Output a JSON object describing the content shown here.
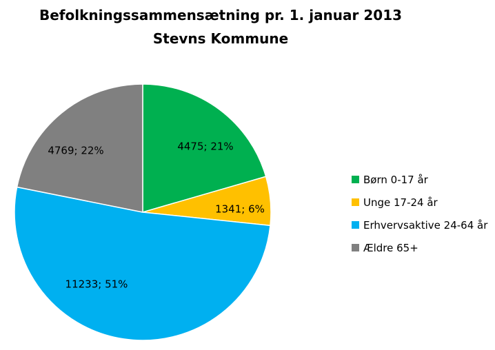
{
  "chart_data": {
    "type": "pie",
    "title": "Befolkningssammensætning pr. 1. januar 2013",
    "subtitle": "Stevns Kommune",
    "legend_position": "right",
    "slices": [
      {
        "name": "Børn 0-17 år",
        "value": 4475,
        "percent": 21,
        "label": "4475; 21%",
        "color": "#00B050"
      },
      {
        "name": "Unge 17-24 år",
        "value": 1341,
        "percent": 6,
        "label": "1341; 6%",
        "color": "#FFC000"
      },
      {
        "name": "Erhvervsaktive 24-64 år",
        "value": 11233,
        "percent": 51,
        "label": "11233; 51%",
        "color": "#00B0F0"
      },
      {
        "name": "Ældre 65+",
        "value": 4769,
        "percent": 22,
        "label": "4769; 22%",
        "color": "#808080"
      }
    ]
  }
}
